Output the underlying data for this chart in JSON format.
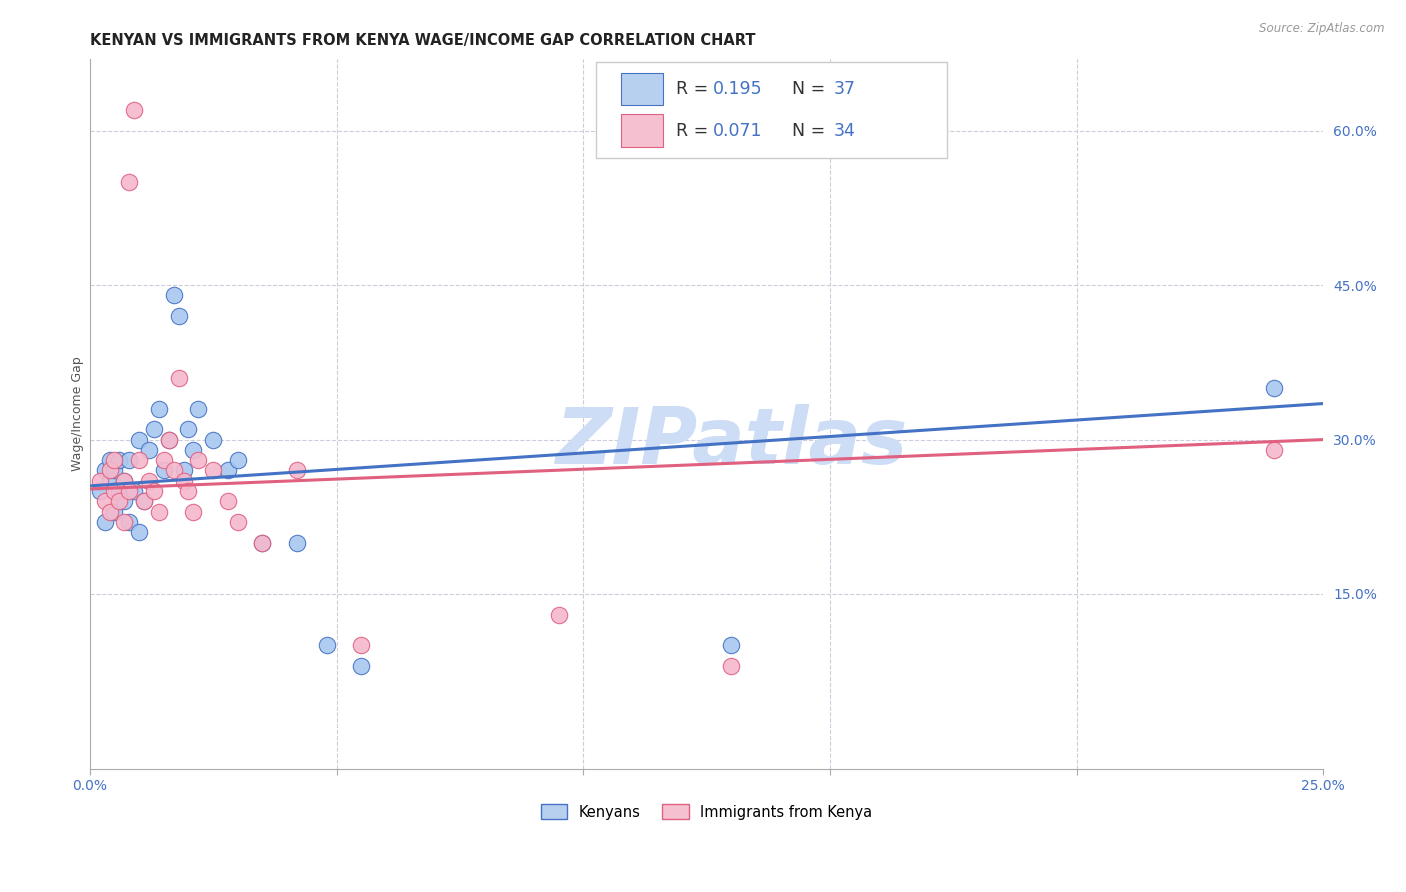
{
  "title": "KENYAN VS IMMIGRANTS FROM KENYA WAGE/INCOME GAP CORRELATION CHART",
  "source": "Source: ZipAtlas.com",
  "ylabel": "Wage/Income Gap",
  "xlim": [
    0.0,
    0.25
  ],
  "ylim": [
    -0.02,
    0.67
  ],
  "xticks": [
    0.0,
    0.05,
    0.1,
    0.15,
    0.2,
    0.25
  ],
  "yticks_right": [
    0.15,
    0.3,
    0.45,
    0.6
  ],
  "ytick_labels_right": [
    "15.0%",
    "30.0%",
    "45.0%",
    "60.0%"
  ],
  "xtick_labels": [
    "0.0%",
    "",
    "",
    "",
    "",
    "25.0%"
  ],
  "series1_color": "#a8c8f0",
  "series2_color": "#f5b8cc",
  "series1_label": "Kenyans",
  "series2_label": "Immigrants from Kenya",
  "series1_R": 0.195,
  "series1_N": 37,
  "series2_R": 0.071,
  "series2_N": 34,
  "line1_color": "#4472c4",
  "line2_color": "#e06080",
  "watermark": "ZIPatlas",
  "watermark_color": "#ccddf5",
  "legend_box_color1": "#b8d0f0",
  "legend_box_color2": "#f5c0d0",
  "blue_text_color": "#4472c4",
  "background_color": "#ffffff",
  "grid_color": "#ccccdd",
  "scatter1_x": [
    0.002,
    0.003,
    0.003,
    0.004,
    0.004,
    0.005,
    0.005,
    0.006,
    0.006,
    0.007,
    0.007,
    0.008,
    0.008,
    0.009,
    0.01,
    0.01,
    0.011,
    0.012,
    0.013,
    0.014,
    0.015,
    0.016,
    0.017,
    0.018,
    0.019,
    0.02,
    0.021,
    0.022,
    0.025,
    0.028,
    0.03,
    0.035,
    0.042,
    0.048,
    0.055,
    0.13,
    0.24
  ],
  "scatter1_y": [
    0.25,
    0.22,
    0.27,
    0.26,
    0.28,
    0.23,
    0.27,
    0.25,
    0.28,
    0.24,
    0.26,
    0.22,
    0.28,
    0.25,
    0.3,
    0.21,
    0.24,
    0.29,
    0.31,
    0.33,
    0.27,
    0.3,
    0.44,
    0.42,
    0.27,
    0.31,
    0.29,
    0.33,
    0.3,
    0.27,
    0.28,
    0.2,
    0.2,
    0.1,
    0.08,
    0.1,
    0.35
  ],
  "scatter2_x": [
    0.002,
    0.003,
    0.004,
    0.004,
    0.005,
    0.005,
    0.006,
    0.007,
    0.007,
    0.008,
    0.008,
    0.009,
    0.01,
    0.011,
    0.012,
    0.013,
    0.014,
    0.015,
    0.016,
    0.017,
    0.018,
    0.019,
    0.02,
    0.021,
    0.022,
    0.025,
    0.028,
    0.03,
    0.035,
    0.042,
    0.055,
    0.095,
    0.13,
    0.24
  ],
  "scatter2_y": [
    0.26,
    0.24,
    0.23,
    0.27,
    0.25,
    0.28,
    0.24,
    0.26,
    0.22,
    0.25,
    0.55,
    0.62,
    0.28,
    0.24,
    0.26,
    0.25,
    0.23,
    0.28,
    0.3,
    0.27,
    0.36,
    0.26,
    0.25,
    0.23,
    0.28,
    0.27,
    0.24,
    0.22,
    0.2,
    0.27,
    0.1,
    0.13,
    0.08,
    0.29
  ]
}
